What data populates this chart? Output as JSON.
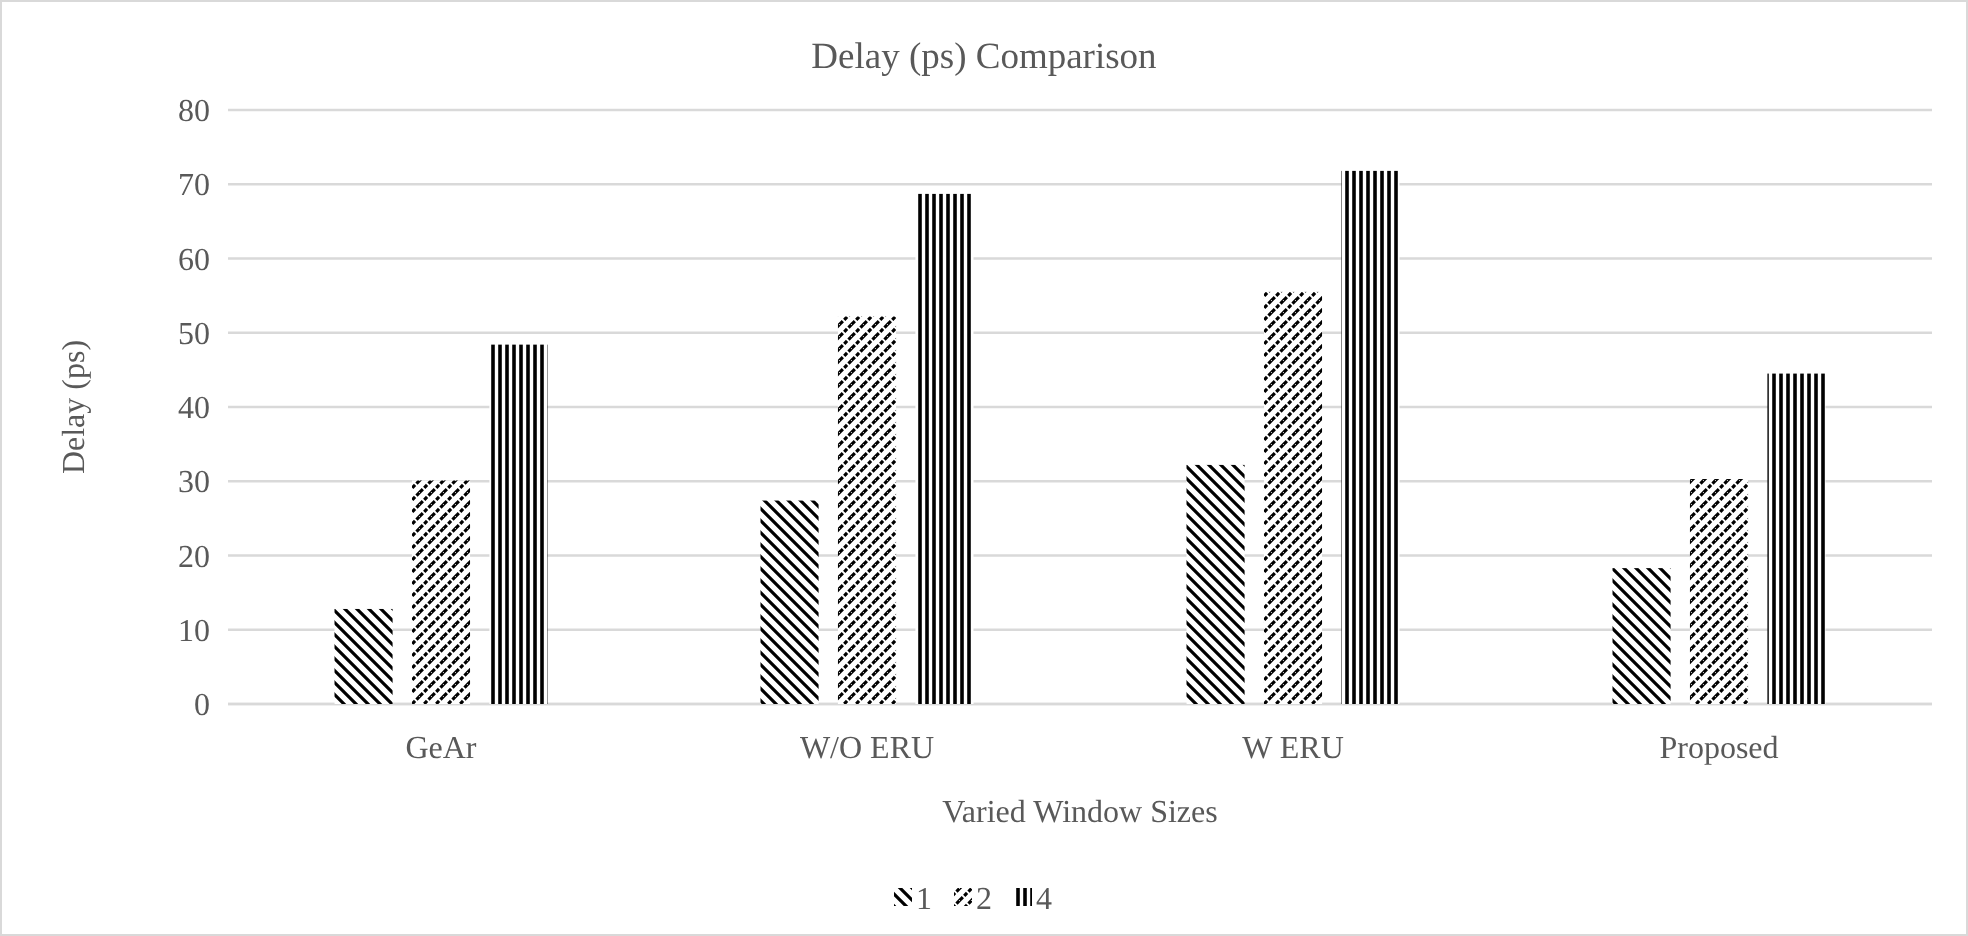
{
  "chart_data": {
    "type": "bar",
    "title": "Delay (ps) Comparison",
    "xlabel": "Varied Window Sizes",
    "ylabel": "Delay (ps)",
    "categories": [
      "GeAr",
      "W/O ERU",
      "W ERU",
      "Proposed"
    ],
    "series": [
      {
        "name": "1",
        "color": "#000000",
        "values": [
          12.8,
          27.4,
          32.2,
          18.3
        ]
      },
      {
        "name": "2",
        "color": "#000000",
        "values": [
          30.1,
          52.2,
          55.5,
          30.3
        ]
      },
      {
        "name": "4",
        "color": "#000000",
        "values": [
          48.4,
          68.7,
          71.8,
          44.5
        ]
      }
    ],
    "ylim": [
      0,
      80
    ],
    "yticks": [
      0,
      10,
      20,
      30,
      40,
      50,
      60,
      70,
      80
    ],
    "grid": "y",
    "legend": "bottom"
  }
}
